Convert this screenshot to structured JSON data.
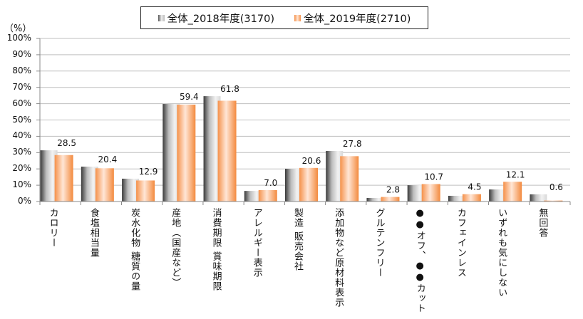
{
  "chart_data": {
    "type": "bar",
    "title": "",
    "unit_label": "（%）",
    "xlabel": "",
    "ylabel": "%",
    "ylim": [
      0,
      100
    ],
    "yticks": [
      "0%",
      "10%",
      "20%",
      "30%",
      "40%",
      "50%",
      "60%",
      "70%",
      "80%",
      "90%",
      "100%"
    ],
    "grid": true,
    "legend_position": "top-center",
    "categories": [
      "カロリー",
      "食塩相当量",
      "炭水化物 糖質の量",
      "産地（国産など）",
      "消費期限 賞味期限",
      "アレルギー表示",
      "製造 販売会社",
      "添加物など原材料表示",
      "グルテンフリー",
      "●●オフ、●●カット",
      "カフェインレス",
      "いずれも気にしない",
      "無回答"
    ],
    "series": [
      {
        "name": "全体_2018年度(3170)",
        "color": "#a0a0a0",
        "values": [
          31.4,
          21.4,
          14.0,
          59.8,
          64.6,
          6.5,
          20.1,
          31.0,
          2.2,
          10.0,
          3.5,
          7.4,
          4.4
        ],
        "labeled": false
      },
      {
        "name": "全体_2019年度(2710)",
        "color": "#f5914a",
        "values": [
          28.5,
          20.4,
          12.9,
          59.4,
          61.8,
          7.0,
          20.6,
          27.8,
          2.8,
          10.7,
          4.5,
          12.1,
          0.6
        ],
        "labeled": true
      }
    ]
  }
}
